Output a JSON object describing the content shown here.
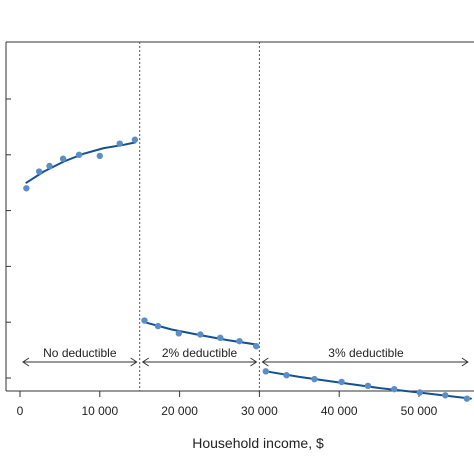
{
  "chart_data": {
    "type": "scatter",
    "xlabel": "Household income, $",
    "ylabel": "",
    "xlim": [
      -2000,
      56500
    ],
    "ylim": [
      0,
      10
    ],
    "x_ticks": [
      0,
      10000,
      20000,
      30000,
      40000,
      50000
    ],
    "x_tick_labels": [
      "0",
      "10 000",
      "20 000",
      "30 000",
      "40 000",
      "50 000"
    ],
    "y_ticks": [
      1,
      2,
      3,
      4,
      5,
      6
    ],
    "thresholds": [
      15000,
      30000
    ],
    "regions": [
      {
        "label": "No deductible",
        "from": 0,
        "to": 15000
      },
      {
        "label": "2% deductible",
        "from": 15000,
        "to": 30000
      },
      {
        "label": "3% deductible",
        "from": 30000,
        "to": 56500
      }
    ],
    "series": [
      {
        "segment": "no-deductible",
        "points": [
          {
            "x": 800,
            "y": 4.4
          },
          {
            "x": 2400,
            "y": 4.7
          },
          {
            "x": 3700,
            "y": 4.8
          },
          {
            "x": 5400,
            "y": 4.93
          },
          {
            "x": 7400,
            "y": 5.0
          },
          {
            "x": 10000,
            "y": 4.98
          },
          {
            "x": 12500,
            "y": 5.2
          },
          {
            "x": 14400,
            "y": 5.27
          }
        ],
        "fit": [
          {
            "x": 800,
            "y": 4.5
          },
          {
            "x": 3000,
            "y": 4.7
          },
          {
            "x": 5500,
            "y": 4.88
          },
          {
            "x": 8000,
            "y": 5.02
          },
          {
            "x": 10500,
            "y": 5.12
          },
          {
            "x": 13000,
            "y": 5.18
          },
          {
            "x": 14400,
            "y": 5.22
          }
        ]
      },
      {
        "segment": "2-percent-deductible",
        "points": [
          {
            "x": 15600,
            "y": 2.03
          },
          {
            "x": 17300,
            "y": 1.93
          },
          {
            "x": 19900,
            "y": 1.8
          },
          {
            "x": 22600,
            "y": 1.78
          },
          {
            "x": 25100,
            "y": 1.72
          },
          {
            "x": 27500,
            "y": 1.66
          },
          {
            "x": 29600,
            "y": 1.57
          }
        ],
        "fit": [
          {
            "x": 15600,
            "y": 2.0
          },
          {
            "x": 19000,
            "y": 1.87
          },
          {
            "x": 22500,
            "y": 1.77
          },
          {
            "x": 26000,
            "y": 1.68
          },
          {
            "x": 29600,
            "y": 1.6
          }
        ]
      },
      {
        "segment": "3-percent-deductible",
        "points": [
          {
            "x": 30800,
            "y": 1.12
          },
          {
            "x": 33400,
            "y": 1.05
          },
          {
            "x": 36900,
            "y": 0.98
          },
          {
            "x": 40300,
            "y": 0.93
          },
          {
            "x": 43600,
            "y": 0.86
          },
          {
            "x": 46900,
            "y": 0.8
          },
          {
            "x": 50100,
            "y": 0.74
          },
          {
            "x": 53300,
            "y": 0.69
          },
          {
            "x": 56000,
            "y": 0.63
          }
        ],
        "fit": [
          {
            "x": 30800,
            "y": 1.12
          },
          {
            "x": 35000,
            "y": 1.02
          },
          {
            "x": 40000,
            "y": 0.92
          },
          {
            "x": 45000,
            "y": 0.82
          },
          {
            "x": 50000,
            "y": 0.74
          },
          {
            "x": 56500,
            "y": 0.63
          }
        ]
      }
    ],
    "colors": {
      "points": "#5b8ec7",
      "fit": "#15508f",
      "axis": "#333333",
      "threshold": "#555555"
    }
  }
}
